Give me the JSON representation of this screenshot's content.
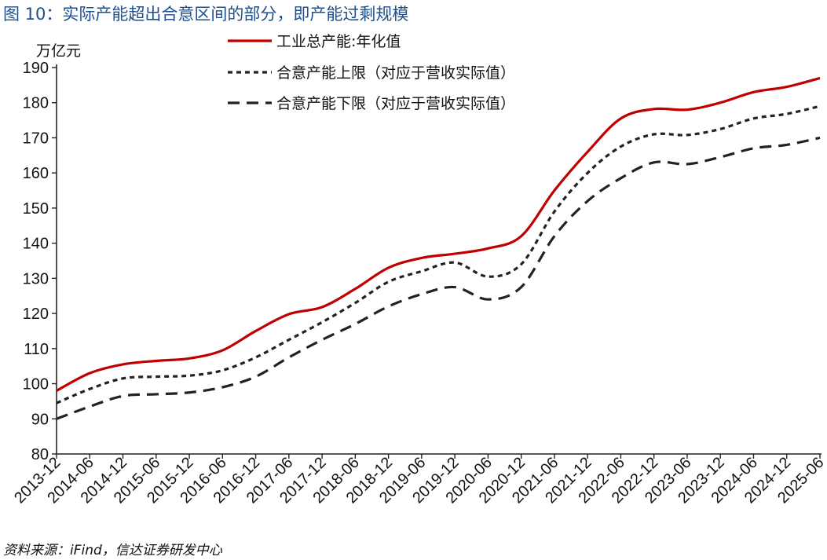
{
  "figure": {
    "title": "图 10：实际产能超出合意区间的部分，即产能过剩规模",
    "unit": "万亿元",
    "source": "资料来源：iFind，信达证券研发中心"
  },
  "colors": {
    "actual": "#c00000",
    "upper": "#222222",
    "lower": "#222222"
  },
  "chart_data": {
    "type": "line",
    "title": "实际产能超出合意区间的部分，即产能过剩规模",
    "ylabel": "万亿元",
    "ylim": [
      80,
      190
    ],
    "yticks": [
      80,
      90,
      100,
      110,
      120,
      130,
      140,
      150,
      160,
      170,
      180,
      190
    ],
    "xtick_labels": [
      "2013-12",
      "2014-06",
      "2014-12",
      "2015-06",
      "2015-12",
      "2016-06",
      "2016-12",
      "2017-06",
      "2017-12",
      "2018-06",
      "2018-12",
      "2019-06",
      "2019-12",
      "2020-06",
      "2020-12",
      "2021-06",
      "2021-12",
      "2022-06",
      "2022-12",
      "2023-06",
      "2023-12",
      "2024-06",
      "2024-12",
      "2025-06"
    ],
    "legend_position": "top",
    "grid": false,
    "series": [
      {
        "name": "工业总产能:年化值",
        "style": "solid",
        "values": [
          98.0,
          103.0,
          105.5,
          106.5,
          107.2,
          109.5,
          115.0,
          119.8,
          121.8,
          127.0,
          133.0,
          135.8,
          137.0,
          138.5,
          142.0,
          155.0,
          166.0,
          175.5,
          178.2,
          178.0,
          180.0,
          183.0,
          184.5,
          187.0
        ]
      },
      {
        "name": "合意产能上限（对应于营收实际值）",
        "style": "dotted",
        "values": [
          94.5,
          98.5,
          101.5,
          102.0,
          102.3,
          103.8,
          107.5,
          112.5,
          117.5,
          123.0,
          129.0,
          132.0,
          134.5,
          130.5,
          134.0,
          149.0,
          160.0,
          167.5,
          171.0,
          170.8,
          172.5,
          175.5,
          176.8,
          179.0
        ]
      },
      {
        "name": "合意产能下限（对应于营收实际值）",
        "style": "dashed",
        "values": [
          90.0,
          93.5,
          96.5,
          97.0,
          97.5,
          99.0,
          102.0,
          107.5,
          112.5,
          117.0,
          122.0,
          125.5,
          127.5,
          124.0,
          127.5,
          142.0,
          152.0,
          158.5,
          163.0,
          162.5,
          164.5,
          167.0,
          168.0,
          170.0
        ]
      }
    ]
  }
}
